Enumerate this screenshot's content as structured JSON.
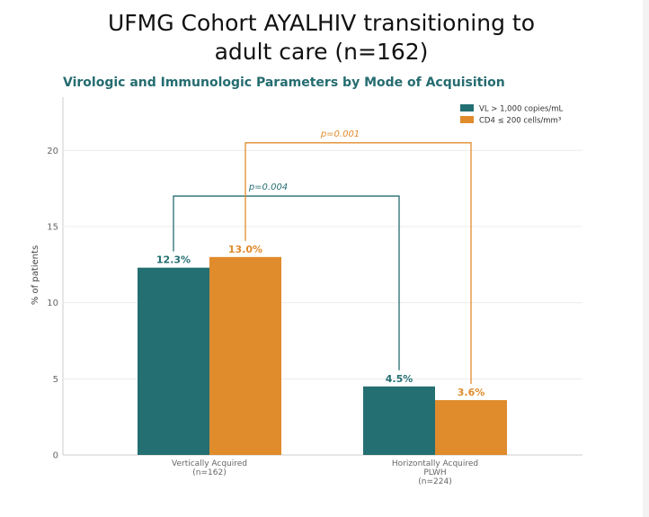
{
  "slide": {
    "title_line1": "UFMG Cohort AYALHIV transitioning to",
    "title_line2": "adult care (n=162)"
  },
  "chart_data": {
    "type": "bar",
    "title": "Virologic and Immunologic Parameters by Mode of Acquisition",
    "ylabel": "% of patients",
    "xlabel": "",
    "ylim": [
      0,
      23.5
    ],
    "yticks": [
      0,
      5,
      10,
      15,
      20
    ],
    "grid": true,
    "legend_position": "top-right",
    "categories": [
      [
        "Vertically Acquired",
        "(n=162)"
      ],
      [
        "Horizontally Acquired",
        "PLWH",
        "(n=224)"
      ]
    ],
    "series": [
      {
        "name": "VL > 1,000 copies/mL",
        "color": "#246f72",
        "values": [
          12.3,
          4.5
        ],
        "labels": [
          "12.3%",
          "4.5%"
        ]
      },
      {
        "name": "CD4 ≤ 200 cells/mm³",
        "color": "#e08b2c",
        "values": [
          13.0,
          3.6
        ],
        "labels": [
          "13.0%",
          "3.6%"
        ]
      }
    ],
    "comparisons": [
      {
        "label": "p=0.004",
        "from": [
          0,
          0
        ],
        "to": [
          1,
          0
        ],
        "y": 17,
        "color": "#256c70"
      },
      {
        "label": "p=0.001",
        "from": [
          0,
          1
        ],
        "to": [
          1,
          1
        ],
        "y": 20.5,
        "color": "#e08b2c"
      }
    ]
  }
}
